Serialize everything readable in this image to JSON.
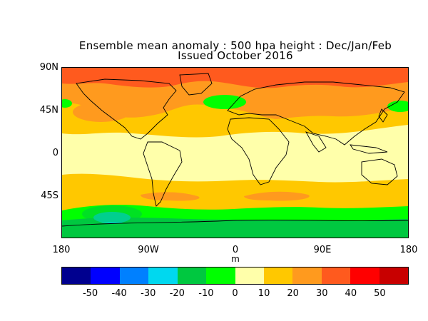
{
  "title": {
    "line1": "Ensemble mean anomaly : 500 hpa height : Dec/Jan/Feb",
    "line2": "Issued October 2016"
  },
  "axes": {
    "y_labels": [
      "90N",
      "45N",
      "0",
      "45S"
    ],
    "x_labels": [
      "180",
      "90W",
      "0",
      "90E",
      "180"
    ],
    "unit": "m"
  },
  "colorbar": {
    "colors": [
      "#00008f",
      "#0000ff",
      "#0080ff",
      "#00d8ef",
      "#00c840",
      "#00ff00",
      "#ffffaa",
      "#ffc800",
      "#ff9a1e",
      "#ff5a1e",
      "#ff0000",
      "#c80000"
    ],
    "labels": [
      "-50",
      "-40",
      "-30",
      "-20",
      "-10",
      "0",
      "10",
      "20",
      "30",
      "40",
      "50"
    ]
  },
  "map_fields": {
    "ocean_background": "#ffffaa",
    "bands": [
      {
        "name": "north-polar-positive",
        "color": "#ff5a1e"
      },
      {
        "name": "north-mid-positive",
        "color": "#ff9a1e"
      },
      {
        "name": "north-weak-positive",
        "color": "#ffc800"
      },
      {
        "name": "tropics-neutral",
        "color": "#ffffaa"
      },
      {
        "name": "southern-weak-positive",
        "color": "#ffc800"
      },
      {
        "name": "southern-negative",
        "color": "#00ff00"
      },
      {
        "name": "antarctic-negative",
        "color": "#00c840"
      },
      {
        "name": "pacific-south-minimum",
        "color": "#00d8ef"
      }
    ]
  }
}
